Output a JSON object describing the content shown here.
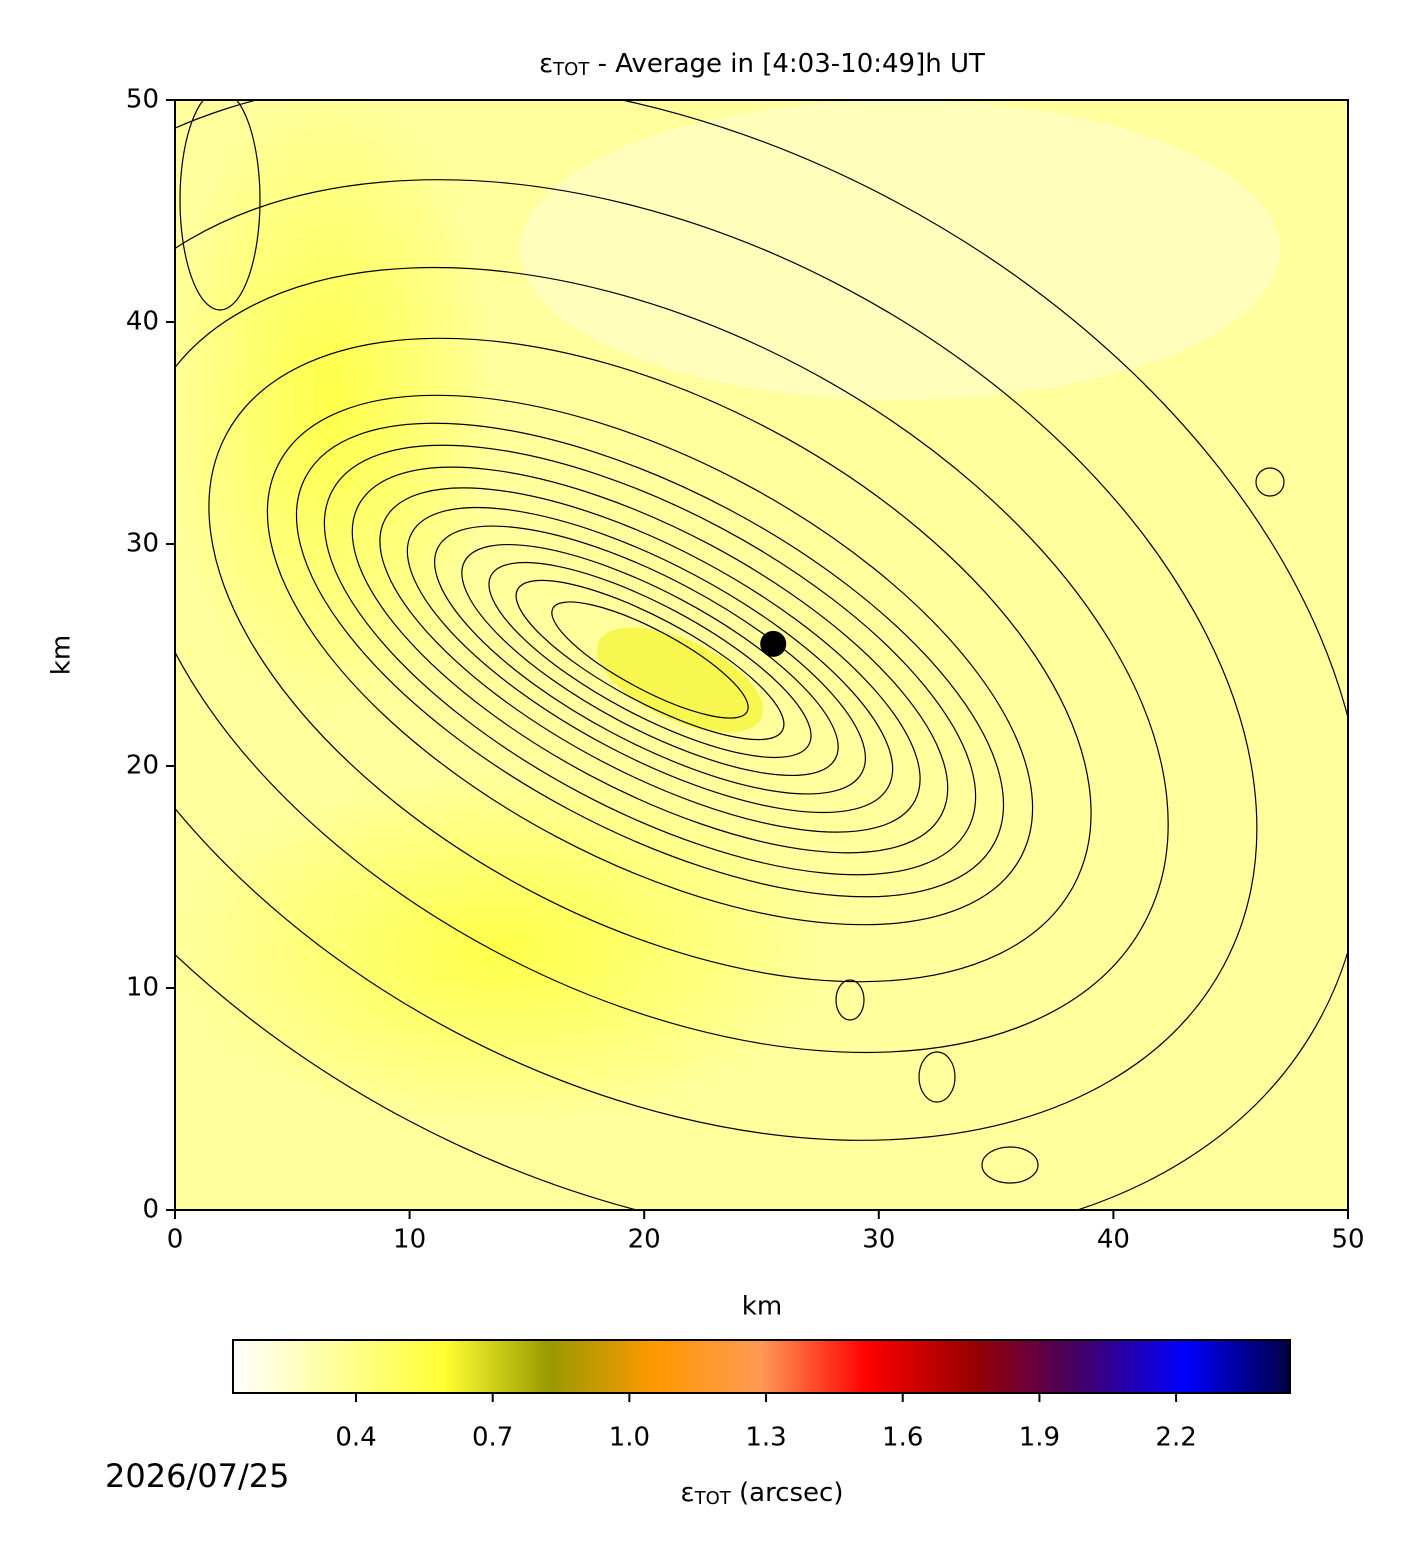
{
  "chart_data": {
    "type": "contour",
    "title": [
      "ε",
      "TOT",
      " - Average in [4:03-10:49]h UT"
    ],
    "x_label": "km",
    "y_label": "km",
    "xlim": [
      0,
      50
    ],
    "ylim": [
      0,
      50
    ],
    "xticks": [
      0,
      10,
      20,
      30,
      40,
      50
    ],
    "yticks": [
      0,
      10,
      20,
      30,
      40,
      50
    ],
    "marker": {
      "x": 25.5,
      "y": 25.5,
      "color": "#000000"
    },
    "colorbar": {
      "label": [
        "ε",
        "TOT",
        " (arcsec)"
      ],
      "lim": [
        0.13,
        2.45
      ],
      "ticks": [
        0.4,
        {
          "value": 0.7,
          "label": "0.7"
        },
        {
          "value": 1.0,
          "label": "1.0"
        },
        1.3,
        1.6,
        1.9,
        2.2
      ],
      "colors": [
        "#ffffff",
        "#ffff99",
        "#ffff33",
        "#999900",
        "#ff9900",
        "#ff9955",
        "#ff0000",
        "#990000",
        "#440066",
        "#0000ff",
        "#000044"
      ]
    },
    "date": "2026/07/25"
  }
}
